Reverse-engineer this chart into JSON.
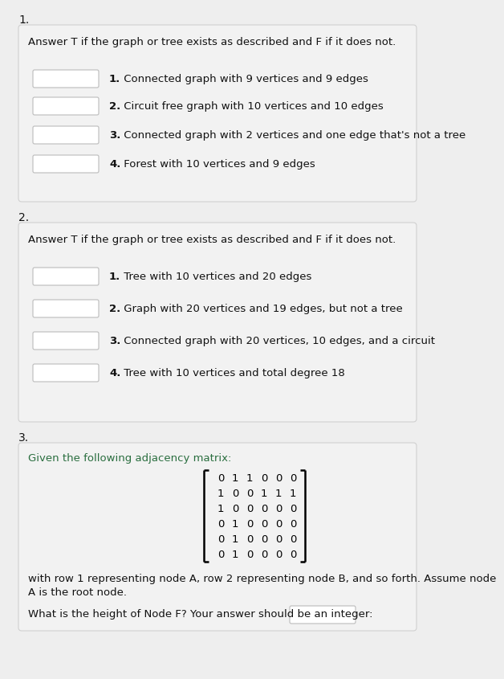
{
  "title1": "1.",
  "title2": "2.",
  "title3": "3.",
  "box1_header": "Answer T if the graph or tree exists as described and F if it does not.",
  "box1_items": [
    [
      "1.",
      " Connected graph with 9 vertices and 9 edges"
    ],
    [
      "2.",
      " Circuit free graph with 10 vertices and 10 edges"
    ],
    [
      "3.",
      " Connected graph with 2 vertices and one edge that's not a tree"
    ],
    [
      "4.",
      " Forest with 10 vertices and 9 edges"
    ]
  ],
  "box2_header": "Answer T if the graph or tree exists as described and F if it does not.",
  "box2_items": [
    [
      "1.",
      " Tree with 10 vertices and 20 edges"
    ],
    [
      "2.",
      " Graph with 20 vertices and 19 edges, but not a tree"
    ],
    [
      "3.",
      " Connected graph with 20 vertices, 10 edges, and a circuit"
    ],
    [
      "4.",
      " Tree with 10 vertices and total degree 18"
    ]
  ],
  "box3_header": "Given the following adjacency matrix:",
  "matrix_data": [
    [
      0,
      1,
      1,
      0,
      0,
      0
    ],
    [
      1,
      0,
      0,
      1,
      1,
      1
    ],
    [
      1,
      0,
      0,
      0,
      0,
      0
    ],
    [
      0,
      1,
      0,
      0,
      0,
      0
    ],
    [
      0,
      1,
      0,
      0,
      0,
      0
    ],
    [
      0,
      1,
      0,
      0,
      0,
      0
    ]
  ],
  "box3_desc1": "with row 1 representing node A, row 2 representing node B, and so forth. Assume node",
  "box3_desc2": "A is the root node.",
  "box3_question": "What is the height of Node F? Your answer should be an integer:",
  "bg_color": "#eeeeee",
  "box_bg": "#f2f2f2",
  "box_edge": "#d0d0d0",
  "white": "#ffffff",
  "ans_edge": "#bbbbbb",
  "black": "#111111",
  "green_header": "#2d7d46"
}
